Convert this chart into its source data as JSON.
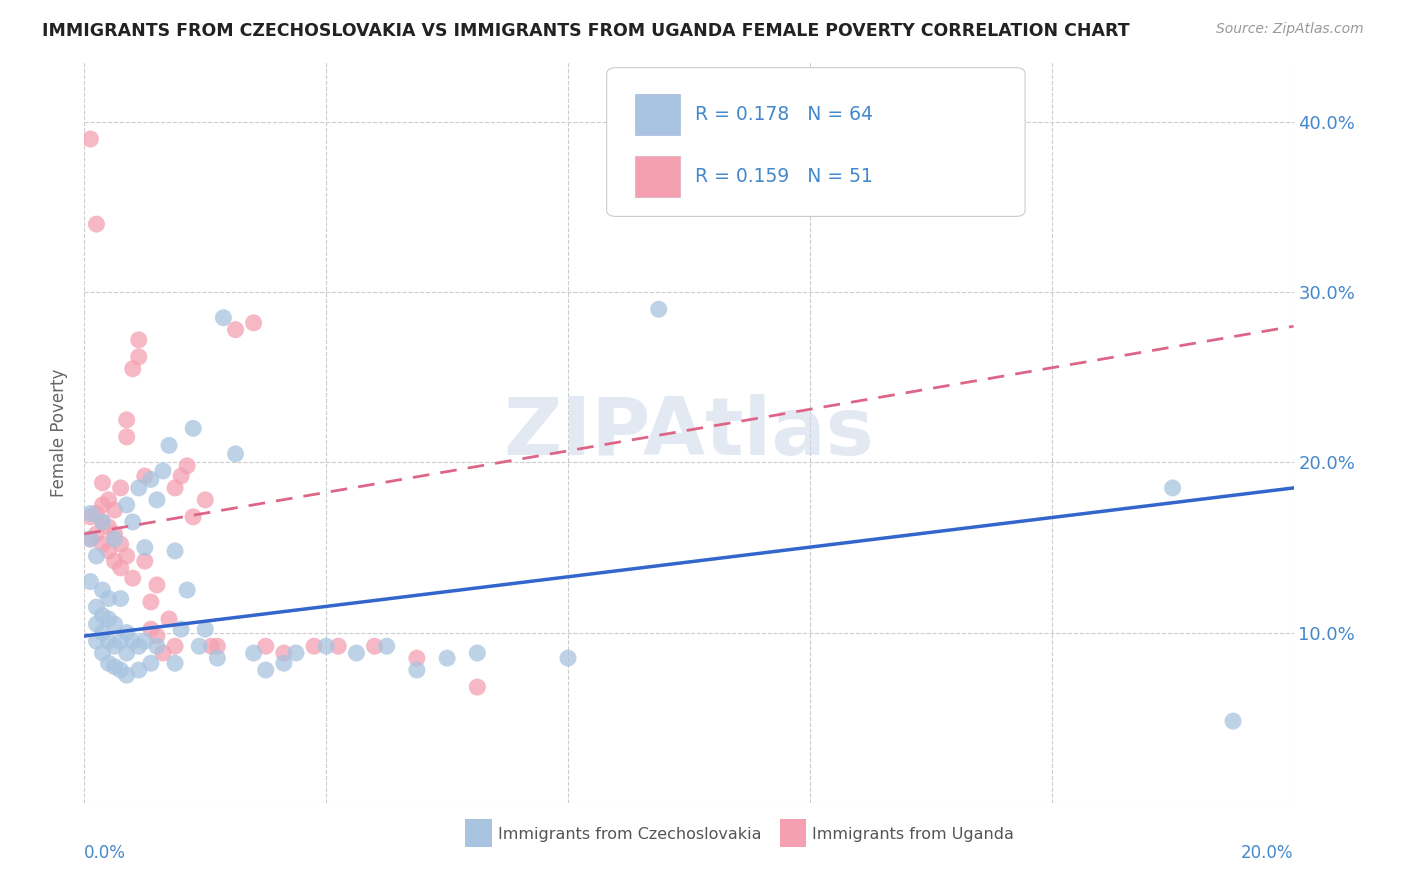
{
  "title": "IMMIGRANTS FROM CZECHOSLOVAKIA VS IMMIGRANTS FROM UGANDA FEMALE POVERTY CORRELATION CHART",
  "source": "Source: ZipAtlas.com",
  "ylabel": "Female Poverty",
  "yticks": [
    0.0,
    0.1,
    0.2,
    0.3,
    0.4
  ],
  "ytick_labels": [
    "",
    "10.0%",
    "20.0%",
    "30.0%",
    "40.0%"
  ],
  "xrange": [
    0.0,
    0.2
  ],
  "yrange": [
    0.0,
    0.435
  ],
  "r_czech": 0.178,
  "n_czech": 64,
  "r_uganda": 0.159,
  "n_uganda": 51,
  "color_czech": "#a8c4e0",
  "color_uganda": "#f4a0b0",
  "trendline_czech_color": "#3366cc",
  "trendline_uganda_color": "#dd6688",
  "legend_label_czech": "Immigrants from Czechoslovakia",
  "legend_label_uganda": "Immigrants from Uganda",
  "czech_x": [
    0.001,
    0.001,
    0.001,
    0.002,
    0.002,
    0.002,
    0.002,
    0.003,
    0.003,
    0.003,
    0.003,
    0.003,
    0.004,
    0.004,
    0.004,
    0.004,
    0.005,
    0.005,
    0.005,
    0.005,
    0.006,
    0.006,
    0.006,
    0.007,
    0.007,
    0.007,
    0.007,
    0.008,
    0.008,
    0.009,
    0.009,
    0.009,
    0.01,
    0.01,
    0.011,
    0.011,
    0.012,
    0.012,
    0.013,
    0.014,
    0.015,
    0.015,
    0.016,
    0.017,
    0.018,
    0.019,
    0.02,
    0.022,
    0.023,
    0.025,
    0.028,
    0.03,
    0.033,
    0.035,
    0.04,
    0.045,
    0.05,
    0.055,
    0.06,
    0.065,
    0.08,
    0.095,
    0.18,
    0.19
  ],
  "czech_y": [
    0.13,
    0.155,
    0.17,
    0.095,
    0.105,
    0.115,
    0.145,
    0.088,
    0.1,
    0.11,
    0.125,
    0.165,
    0.082,
    0.095,
    0.108,
    0.12,
    0.08,
    0.092,
    0.105,
    0.155,
    0.078,
    0.095,
    0.12,
    0.075,
    0.088,
    0.1,
    0.175,
    0.095,
    0.165,
    0.078,
    0.092,
    0.185,
    0.095,
    0.15,
    0.082,
    0.19,
    0.092,
    0.178,
    0.195,
    0.21,
    0.082,
    0.148,
    0.102,
    0.125,
    0.22,
    0.092,
    0.102,
    0.085,
    0.285,
    0.205,
    0.088,
    0.078,
    0.082,
    0.088,
    0.092,
    0.088,
    0.092,
    0.078,
    0.085,
    0.088,
    0.085,
    0.29,
    0.185,
    0.048
  ],
  "uganda_x": [
    0.001,
    0.001,
    0.001,
    0.002,
    0.002,
    0.002,
    0.003,
    0.003,
    0.003,
    0.003,
    0.004,
    0.004,
    0.004,
    0.005,
    0.005,
    0.005,
    0.006,
    0.006,
    0.006,
    0.007,
    0.007,
    0.007,
    0.008,
    0.008,
    0.009,
    0.009,
    0.01,
    0.01,
    0.011,
    0.011,
    0.012,
    0.012,
    0.013,
    0.014,
    0.015,
    0.015,
    0.016,
    0.017,
    0.018,
    0.02,
    0.021,
    0.022,
    0.025,
    0.028,
    0.03,
    0.033,
    0.038,
    0.042,
    0.048,
    0.055,
    0.065
  ],
  "uganda_y": [
    0.155,
    0.168,
    0.39,
    0.158,
    0.17,
    0.34,
    0.152,
    0.165,
    0.175,
    0.188,
    0.148,
    0.162,
    0.178,
    0.142,
    0.158,
    0.172,
    0.138,
    0.152,
    0.185,
    0.145,
    0.215,
    0.225,
    0.132,
    0.255,
    0.262,
    0.272,
    0.142,
    0.192,
    0.102,
    0.118,
    0.098,
    0.128,
    0.088,
    0.108,
    0.092,
    0.185,
    0.192,
    0.198,
    0.168,
    0.178,
    0.092,
    0.092,
    0.278,
    0.282,
    0.092,
    0.088,
    0.092,
    0.092,
    0.092,
    0.085,
    0.068
  ]
}
